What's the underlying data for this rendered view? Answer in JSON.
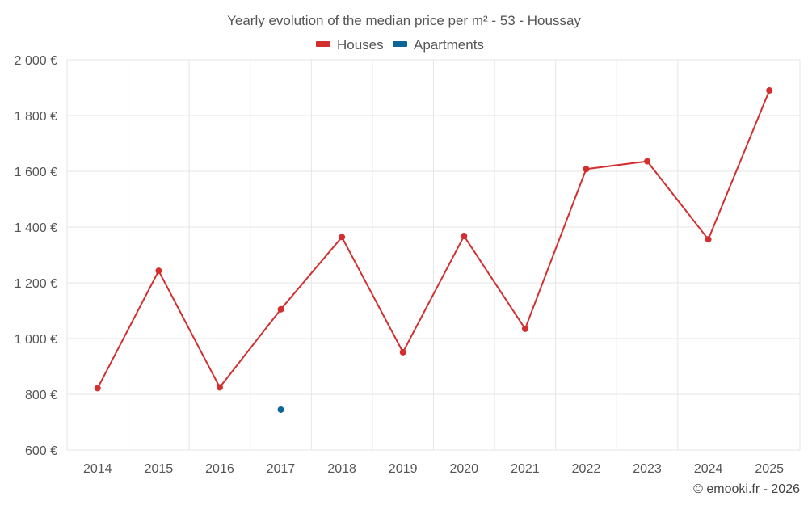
{
  "chart_data": {
    "type": "line",
    "title": "Yearly evolution of the median price per m² - 53 - Houssay",
    "categories": [
      "2014",
      "2015",
      "2016",
      "2017",
      "2018",
      "2019",
      "2020",
      "2021",
      "2022",
      "2023",
      "2024",
      "2025"
    ],
    "x": [
      2014,
      2015,
      2016,
      2017,
      2018,
      2019,
      2020,
      2021,
      2022,
      2023,
      2024,
      2025
    ],
    "ylim": [
      600,
      2000
    ],
    "yticks": [
      600,
      800,
      1000,
      1200,
      1400,
      1600,
      1800,
      2000
    ],
    "ytick_labels": [
      "600 €",
      "800 €",
      "1 000 €",
      "1 200 €",
      "1 400 €",
      "1 600 €",
      "1 800 €",
      "2 000 €"
    ],
    "grid": true,
    "legend_position": "top-center",
    "series": [
      {
        "name": "Houses",
        "color": "#d32f2f",
        "values": [
          822,
          1243,
          825,
          1105,
          1364,
          951,
          1368,
          1035,
          1608,
          1636,
          1356,
          1890
        ]
      },
      {
        "name": "Apartments",
        "color": "#0d6597",
        "values": [
          null,
          null,
          null,
          745,
          null,
          null,
          null,
          null,
          null,
          null,
          null,
          null
        ]
      }
    ]
  },
  "credit": "© emooki.fr - 2026"
}
